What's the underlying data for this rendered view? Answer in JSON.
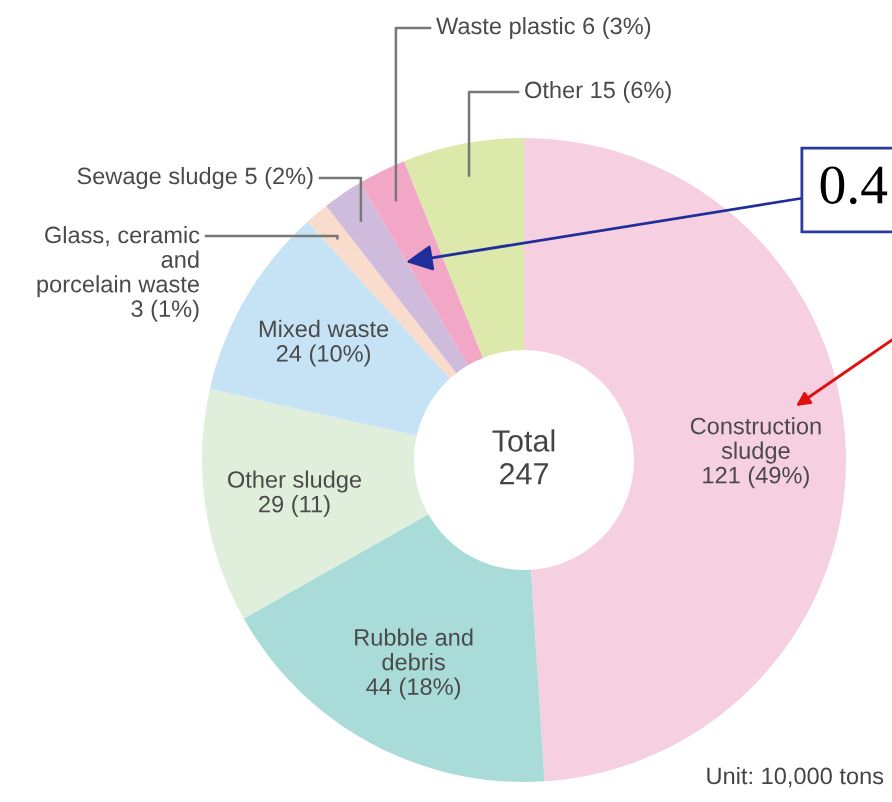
{
  "chart_data": {
    "type": "donut",
    "categories": [
      "Construction\nsludge",
      "Rubble and\ndebris",
      "Other sludge",
      "Mixed waste",
      "Glass, ceramic\nand\nporcelain waste",
      "Sewage sludge",
      "Waste plastic",
      "Other"
    ],
    "values": [
      121,
      44,
      29,
      24,
      3,
      5,
      6,
      15
    ],
    "value_labels": [
      "121 (49%)",
      "44 (18%)",
      "29 (11)",
      "24 (10%)",
      "3 (1%)",
      "5 (2%)",
      "6 (3%)",
      "15 (6%)"
    ],
    "colors": [
      "#f6cfe0",
      "#a9dcd8",
      "#e0eedc",
      "#c6e3f6",
      "#f9dccb",
      "#cfbcdd",
      "#f2a7c6",
      "#dce9aa"
    ],
    "annotations": [
      "Total\n247",
      "Unit: 10,000 tons",
      "0.4"
    ]
  }
}
